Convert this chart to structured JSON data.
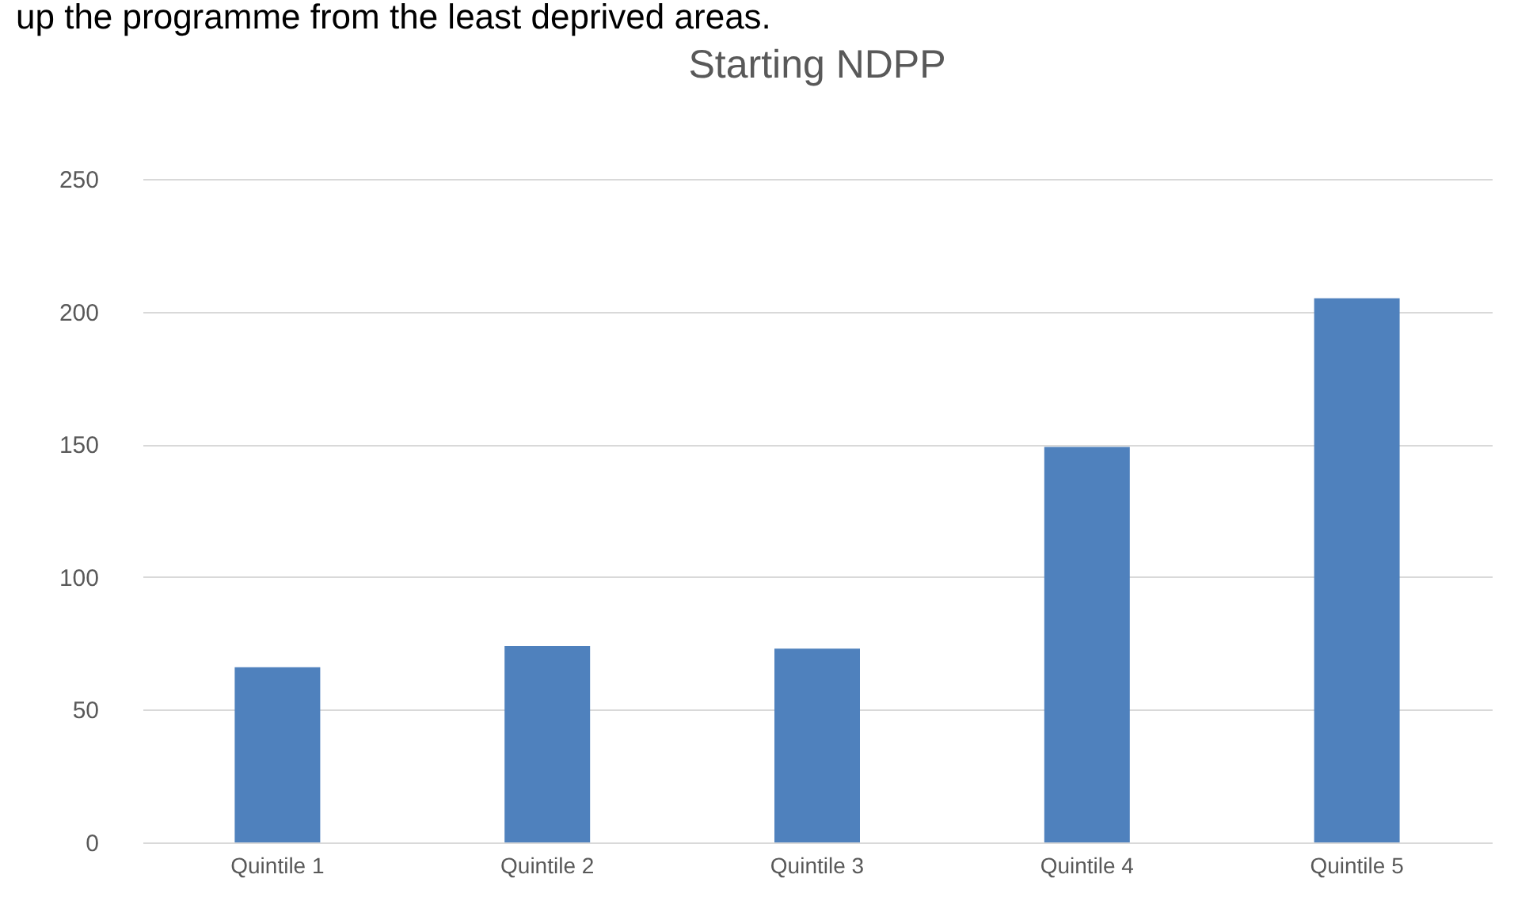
{
  "chart_data": {
    "type": "bar",
    "title": "Starting NDPP",
    "annotations": [
      "up the programme from the least deprived areas."
    ],
    "categories": [
      "Quintile 1",
      "Quintile 2",
      "Quintile 3",
      "Quintile 4",
      "Quintile 5"
    ],
    "values": [
      66,
      74,
      73,
      149,
      205
    ],
    "color": "#4f81bd",
    "ylim": [
      0,
      250
    ],
    "yticks": [
      0,
      50,
      100,
      150,
      200,
      250
    ],
    "grid": "y"
  }
}
